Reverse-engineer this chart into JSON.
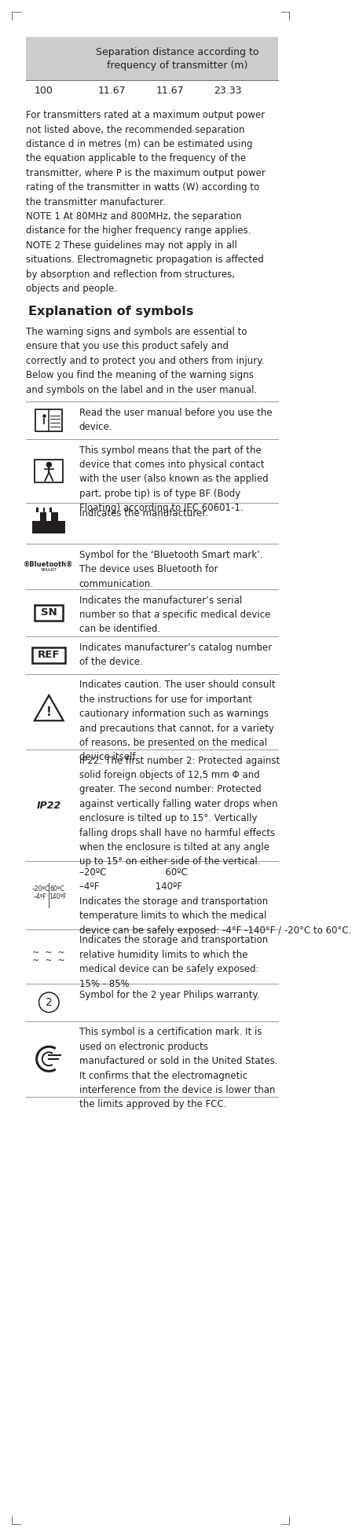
{
  "title_table": "Separation distance according to\nfrequency of transmitter (m)",
  "table_values": [
    "100",
    "11.67",
    "11.67",
    "23.33"
  ],
  "table_bg": "#cccccc",
  "body_text_1": "For transmitters rated at a maximum output power not listed above, the recommended separation distance d in metres (m) can be estimated using the equation applicable to the frequency of the transmitter, where P is the maximum output power rating of the transmitter in watts (W) according to the transmitter manufacturer.\nNOTE 1 At 80MHz and 800MHz, the separation distance for the higher frequency range applies.\nNOTE 2 These guidelines may not apply in all situations. Electromagnetic propagation is affected by absorption and reflection from structures, objects and people.",
  "section_heading": "Explanation of symbols",
  "section_intro": "The warning signs and symbols are essential to ensure that you use this product safely and correctly and to protect you and others from injury. Below you find the meaning of the warning signs and symbols on the label and in the user manual.",
  "rows": [
    {
      "symbol_type": "book",
      "text": "Read the user manual before you use the\ndevice."
    },
    {
      "symbol_type": "person_bf",
      "text": "This symbol means that the part of the\ndevice that comes into physical contact\nwith the user (also known as the applied\npart, probe tip) is of type BF (Body\nFloating) according to IEC 60601-1."
    },
    {
      "symbol_type": "manufacturer",
      "text": "Indicates the manufacturer."
    },
    {
      "symbol_type": "bluetooth",
      "text": "Symbol for the ‘Bluetooth Smart mark’.\nThe device uses Bluetooth for\ncommunication."
    },
    {
      "symbol_type": "SN",
      "text": "Indicates the manufacturer’s serial\nnumber so that a specific medical device\ncan be identified."
    },
    {
      "symbol_type": "REF",
      "text": "Indicates manufacturer’s catalog number\nof the device."
    },
    {
      "symbol_type": "caution",
      "text": "Indicates caution. The user should consult\nthe instructions for use for important\ncautionary information such as warnings\nand precautions that cannot, for a variety\nof reasons, be presented on the medical\ndevice itself."
    },
    {
      "symbol_type": "IP22",
      "text": "IP22: The first number 2: Protected against\nsolid foreign objects of 12,5 mm Φ and\ngreater. The second number: Protected\nagainst vertically falling water drops when\nenclosure is tilted up to 15°. Vertically\nfalling drops shall have no harmful effects\nwhen the enclosure is tilted at any angle\nup to 15° on either side of the vertical."
    },
    {
      "symbol_type": "temperature",
      "text": "Indicates the storage and transportation\ntemperature limits to which the medical\ndevice can be safely exposed: -4°F -140°F\n/ -20°C to 60°C."
    },
    {
      "symbol_type": "humidity",
      "text": "Indicates the storage and transportation\nrelative humidity limits to which the\nmedical device can be safely exposed:\n15% - 85%"
    },
    {
      "symbol_type": "warranty",
      "text": "Symbol for the 2 year Philips warranty."
    },
    {
      "symbol_type": "FCC",
      "text": "This symbol is a certification mark. It is\nused on electronic products\nmanufactured or sold in the United States.\nIt confirms that the electromagnetic\ninterference from the device is lower than\nthe limits approved by the FCC."
    }
  ],
  "bg_color": "#ffffff",
  "text_color": "#231f20",
  "line_color": "#999999",
  "font_size_body": 8.5,
  "font_size_heading": 11.5
}
